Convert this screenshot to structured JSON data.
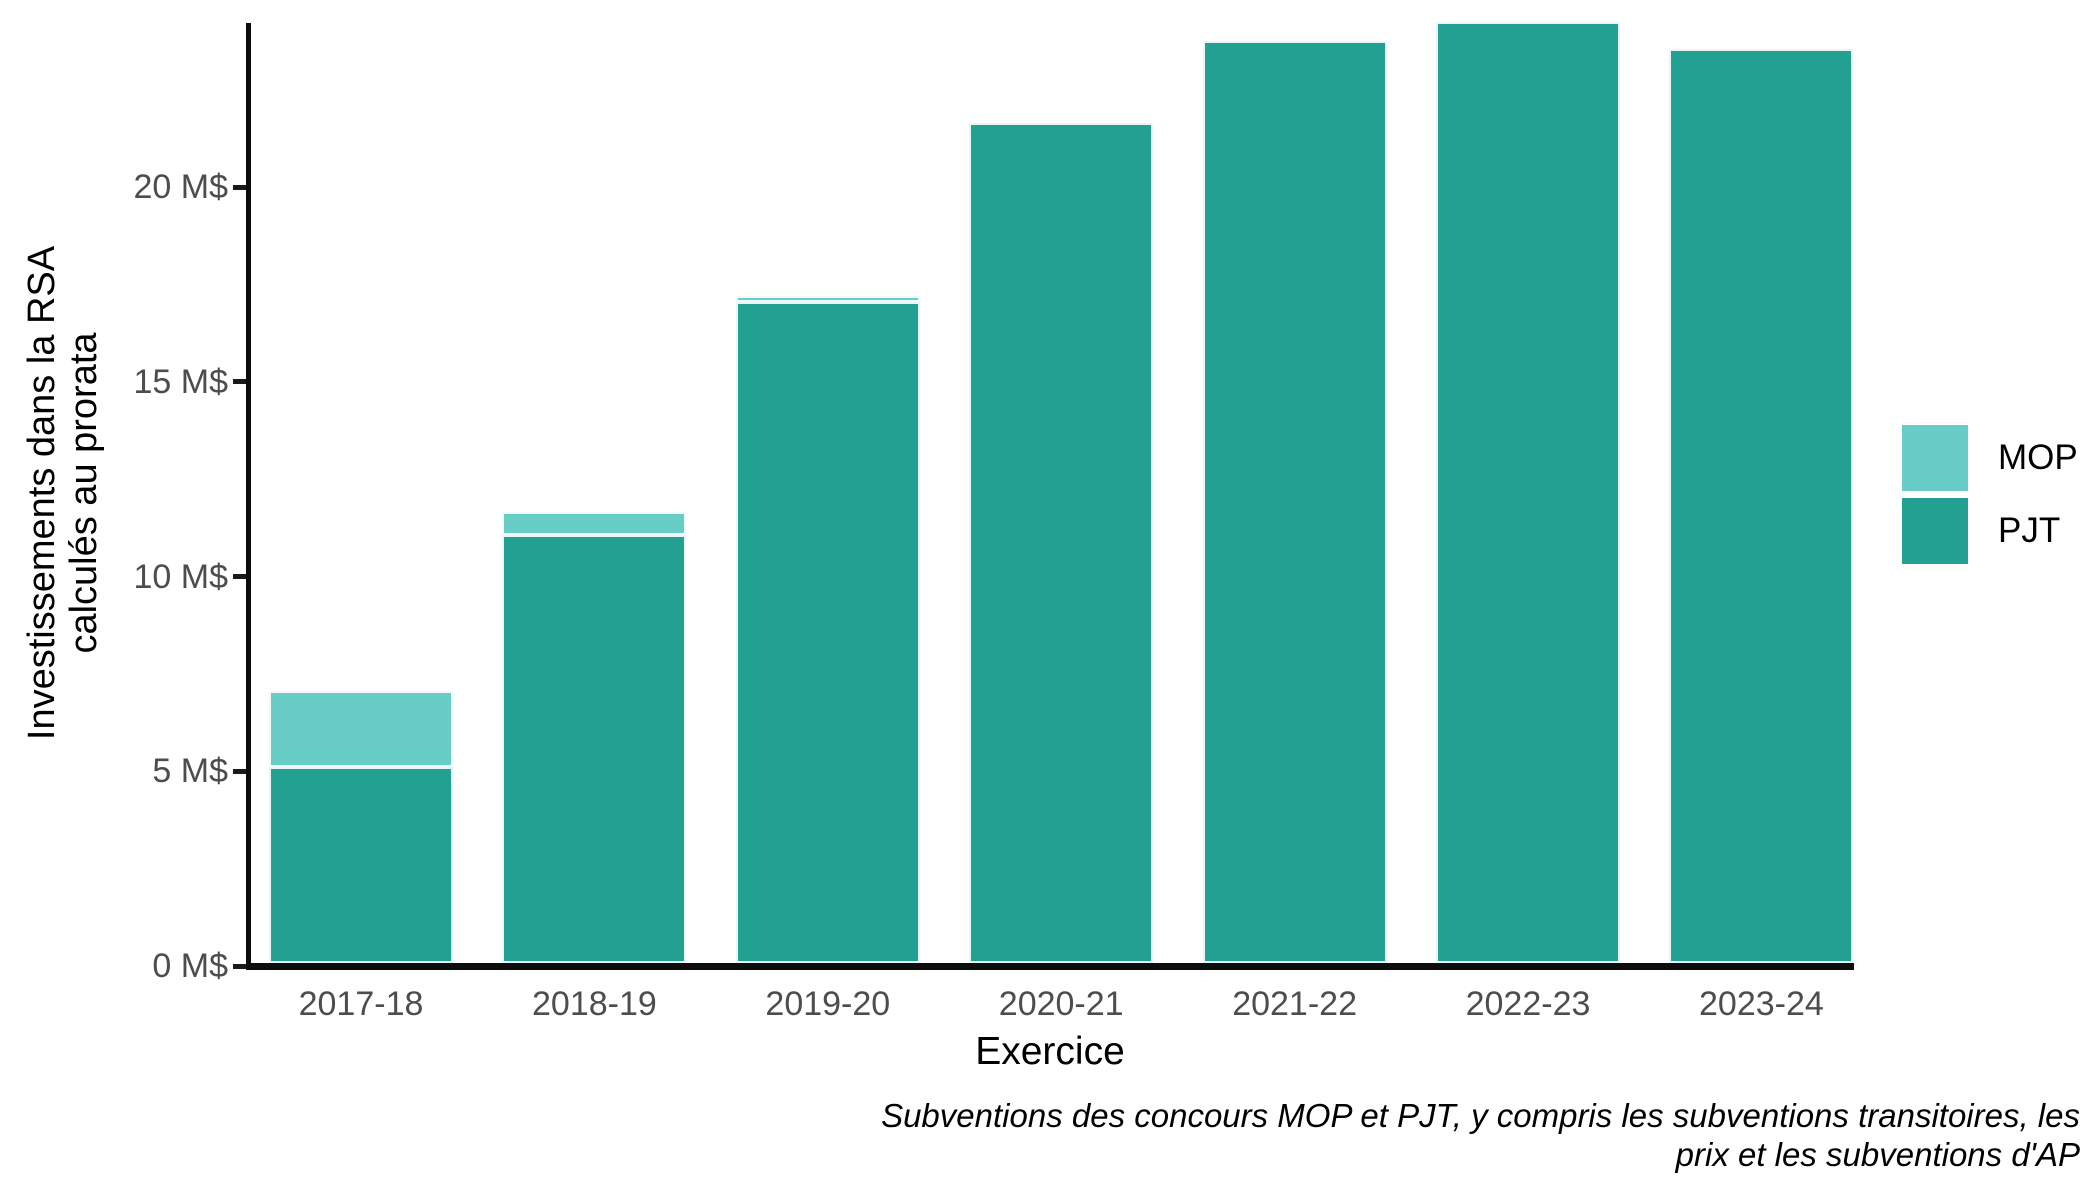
{
  "figure": {
    "y_axis_title_line1": "Investissements dans la RSA",
    "y_axis_title_line2": "calculés au prorata",
    "x_axis_title": "Exercice",
    "caption_line1": "Subventions des concours MOP et PJT, y compris les subventions transitoires, les",
    "caption_line2": "prix et les subventions d'AP"
  },
  "legend": {
    "position": "right",
    "items": [
      {
        "label": "MOP",
        "color": "#68cdc6"
      },
      {
        "label": "PJT",
        "color": "#22a091"
      }
    ]
  },
  "colors": {
    "mop": "#68cdc6",
    "pjt": "#22a091",
    "axis": "#0d0d0d",
    "tick_text": "#4d4d4d",
    "background": "#ffffff"
  },
  "chart_data": {
    "type": "bar",
    "stacked": true,
    "title": "",
    "xlabel": "Exercice",
    "ylabel": "Investissements dans la RSA calculés au prorata",
    "caption": "Subventions des concours MOP et PJT, y compris les subventions transitoires, les prix et les subventions d'AP",
    "categories": [
      "2017-18",
      "2018-19",
      "2019-20",
      "2020-21",
      "2021-22",
      "2022-23",
      "2023-24"
    ],
    "series": [
      {
        "name": "MOP",
        "color": "#68cdc6",
        "values": [
          1.95,
          0.6,
          0.15,
          0,
          0,
          0,
          0
        ]
      },
      {
        "name": "PJT",
        "color": "#22a091",
        "values": [
          5.05,
          11.0,
          17.0,
          21.6,
          23.7,
          24.2,
          23.5
        ]
      }
    ],
    "totals": [
      7.0,
      11.6,
      17.15,
      21.6,
      23.7,
      24.2,
      23.5
    ],
    "unit": "M$",
    "ylim": [
      0,
      24.3
    ],
    "yticks": [
      {
        "value": 0,
        "label": "0 M$"
      },
      {
        "value": 5,
        "label": "5 M$"
      },
      {
        "value": 10,
        "label": "10 M$"
      },
      {
        "value": 15,
        "label": "15 M$"
      },
      {
        "value": 20,
        "label": "20 M$"
      }
    ],
    "grid": false,
    "legend_position": "right"
  }
}
